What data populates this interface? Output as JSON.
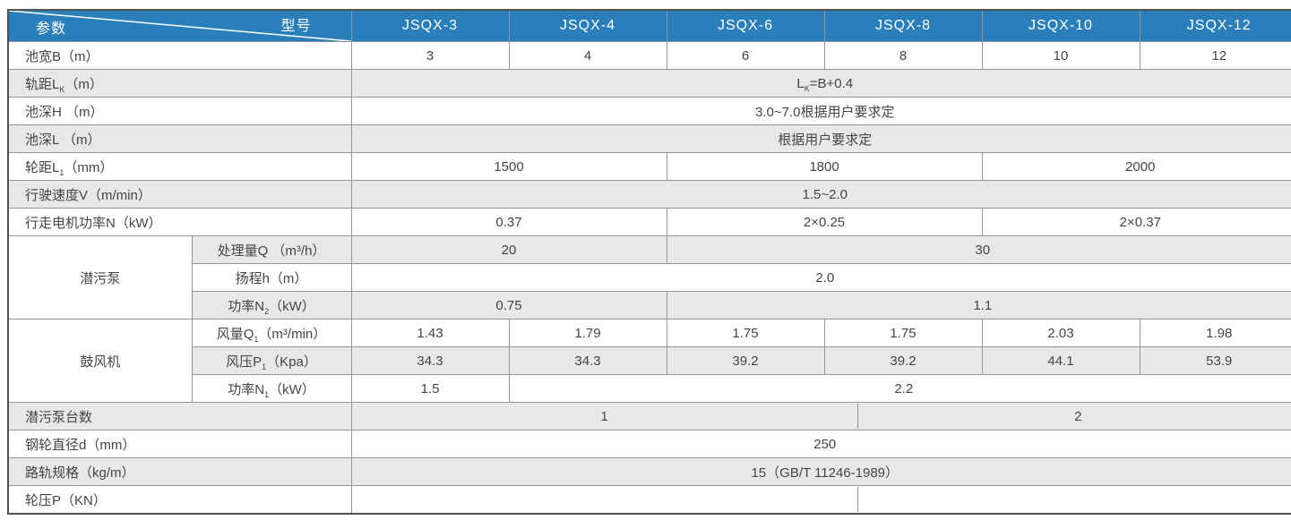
{
  "table": {
    "corner": {
      "top_right": "型号",
      "bottom_left": "参数"
    },
    "models": [
      "JSQX-3",
      "JSQX-4",
      "JSQX-6",
      "JSQX-8",
      "JSQX-10",
      "JSQX-12"
    ],
    "colors": {
      "header_bg": "#2a7fba",
      "header_text": "#ffffff",
      "stripe_bg": "#e7e9e9",
      "row_bg": "#ffffff",
      "border_inner": "#94979a",
      "border_outer": "#515254",
      "text": "#454545"
    },
    "rows": [
      {
        "label": "池宽B（m）",
        "values": [
          "3",
          "4",
          "6",
          "8",
          "10",
          "12"
        ]
      },
      {
        "label_seg": [
          {
            "t": "轨距L"
          },
          {
            "t": "K",
            "sub": true
          },
          {
            "t": "（m）"
          }
        ],
        "value_seg": [
          {
            "t": "L"
          },
          {
            "t": "K",
            "sub": true
          },
          {
            "t": "=B+0.4"
          }
        ]
      },
      {
        "label": "池深H （m）",
        "values": [
          "3.0~7.0根据用户要求定"
        ]
      },
      {
        "label": "池深L （m）",
        "values": [
          "根据用户要求定"
        ]
      },
      {
        "label_seg": [
          {
            "t": "轮距L"
          },
          {
            "t": "1",
            "sub": true
          },
          {
            "t": "（mm）"
          }
        ],
        "values": [
          "1500",
          "1800",
          "2000"
        ]
      },
      {
        "label": "行驶速度V（m/min）",
        "values": [
          "1.5~2.0"
        ]
      },
      {
        "label": "行走电机功率N（kW）",
        "values": [
          "0.37",
          "2×0.25",
          "2×0.37"
        ]
      },
      {
        "group": "潜污泵",
        "sub_label": "处理量Q （m³/h）",
        "values": [
          "20",
          "30"
        ]
      },
      {
        "sub_label": "扬程h（m）",
        "values": [
          "2.0"
        ]
      },
      {
        "sub_label_seg": [
          {
            "t": "功率N"
          },
          {
            "t": "2",
            "sub": true
          },
          {
            "t": "（kW）"
          }
        ],
        "values": [
          "0.75",
          "1.1"
        ]
      },
      {
        "group": "鼓风机",
        "sub_label_seg": [
          {
            "t": "风量Q"
          },
          {
            "t": "1",
            "sub": true
          },
          {
            "t": "（m³/min）"
          }
        ],
        "values": [
          "1.43",
          "1.79",
          "1.75",
          "1.75",
          "2.03",
          "1.98"
        ]
      },
      {
        "sub_label_seg": [
          {
            "t": "风压P"
          },
          {
            "t": "1",
            "sub": true
          },
          {
            "t": "（Kpa）"
          }
        ],
        "values": [
          "34.3",
          "34.3",
          "39.2",
          "39.2",
          "44.1",
          "53.9"
        ]
      },
      {
        "sub_label_seg": [
          {
            "t": "功率N"
          },
          {
            "t": "1",
            "sub": true
          },
          {
            "t": "（kW）"
          }
        ],
        "values": [
          "1.5",
          "2.2"
        ]
      },
      {
        "label": "潜污泵台数",
        "values": [
          "1",
          "2"
        ]
      },
      {
        "label": "钢轮直径d（mm）",
        "values": [
          "250"
        ]
      },
      {
        "label": "路轨规格（kg/m）",
        "values": [
          "15（GB/T 11246-1989）"
        ]
      },
      {
        "label": "轮压P（KN）",
        "values": [
          "",
          ""
        ]
      }
    ]
  }
}
